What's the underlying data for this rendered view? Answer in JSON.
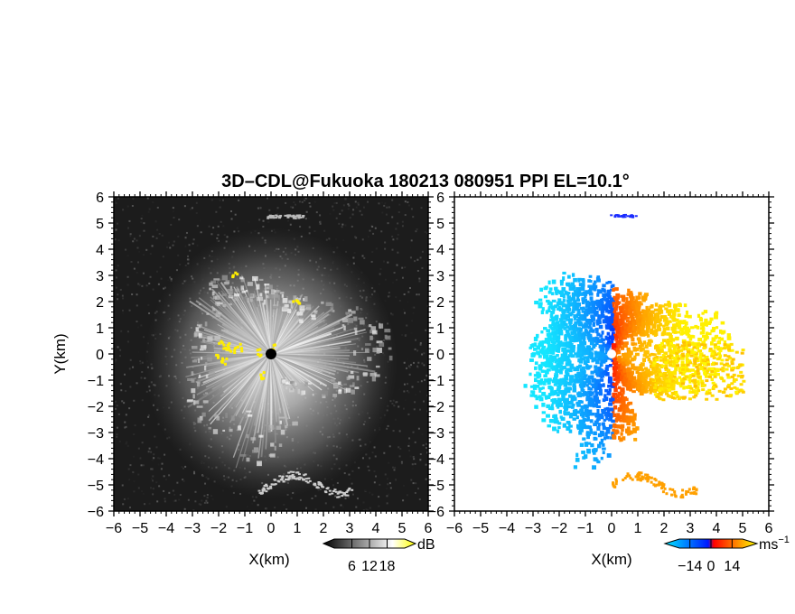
{
  "chart_data": {
    "type": "heatmap",
    "title": "3D–CDL@Fukuoka 180213 080951 PPI EL=10.1°",
    "panels": [
      {
        "id": "reflectivity",
        "xlabel": "X(km)",
        "ylabel": "Y(km)",
        "xlim": [
          -6,
          6
        ],
        "ylim": [
          -6,
          6
        ],
        "xticks": [
          "−6",
          "−5",
          "−4",
          "−3",
          "−2",
          "−1",
          "0",
          "1",
          "2",
          "3",
          "4",
          "5",
          "6"
        ],
        "yticks": [
          "−6",
          "−5",
          "−4",
          "−3",
          "−2",
          "−1",
          "0",
          "1",
          "2",
          "3",
          "4",
          "5",
          "6"
        ],
        "background": "#1c1c1c",
        "colorbar": {
          "unit": "dB",
          "ticks": [
            "6",
            "12",
            "18"
          ],
          "values": [
            6,
            12,
            18
          ],
          "range": [
            0,
            24
          ],
          "colors": [
            "#000000",
            "#ffffff",
            "#ffff00"
          ]
        }
      },
      {
        "id": "doppler_velocity",
        "xlabel": "X(km)",
        "xlim": [
          -6,
          6
        ],
        "ylim": [
          -6,
          6
        ],
        "xticks": [
          "−6",
          "−5",
          "−4",
          "−3",
          "−2",
          "−1",
          "0",
          "1",
          "2",
          "3",
          "4",
          "5",
          "6"
        ],
        "yticks": [
          "−6",
          "−5",
          "−4",
          "−3",
          "−2",
          "−1",
          "0",
          "1",
          "2",
          "3",
          "4",
          "5",
          "6"
        ],
        "background": "#ffffff",
        "colorbar": {
          "unit": "ms",
          "unit_sup": "−1",
          "ticks": [
            "−14",
            "0",
            "14"
          ],
          "values": [
            -14,
            0,
            14
          ],
          "range": [
            -21,
            21
          ],
          "colors": [
            "#00e8ff",
            "#0018ff",
            "#ff0000",
            "#ffff00"
          ]
        }
      }
    ]
  }
}
